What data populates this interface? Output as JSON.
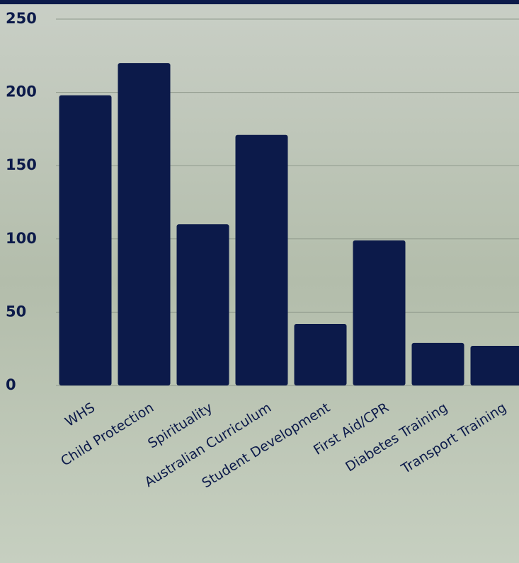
{
  "chart_data": {
    "type": "bar",
    "categories": [
      "WHS",
      "Child Protection",
      "Spirituality",
      "Australian Curriculum",
      "Student Development",
      "First Aid/CPR",
      "Diabetes Training",
      "Transport Training"
    ],
    "values": [
      198,
      220,
      110,
      171,
      42,
      99,
      29,
      27
    ],
    "color": "#0c1a4a",
    "ylim": [
      0,
      250
    ],
    "yticks": [
      0,
      50,
      100,
      150,
      200,
      250
    ],
    "grid": true
  }
}
